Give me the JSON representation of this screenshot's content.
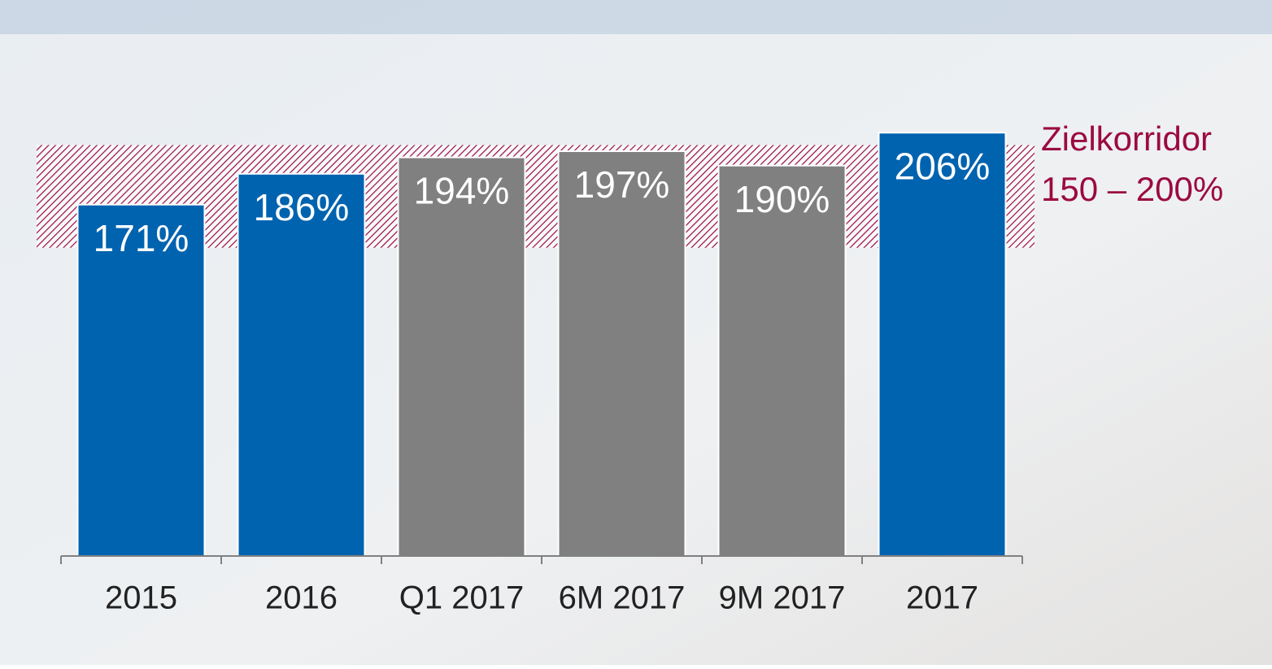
{
  "chart_data": {
    "type": "bar",
    "categories": [
      "2015",
      "2016",
      "Q1 2017",
      "6M 2017",
      "9M 2017",
      "2017"
    ],
    "values": [
      171,
      186,
      194,
      197,
      190,
      206
    ],
    "value_labels": [
      "171%",
      "186%",
      "194%",
      "197%",
      "190%",
      "206%"
    ],
    "colors": [
      "#0063af",
      "#0063af",
      "#808080",
      "#808080",
      "#808080",
      "#0063af"
    ],
    "ylim": [
      0,
      250
    ],
    "target_band": [
      150,
      200
    ],
    "band_color": "#9b0a3f",
    "annotations": [
      "Zielkorridor",
      "150 – 200%"
    ]
  }
}
